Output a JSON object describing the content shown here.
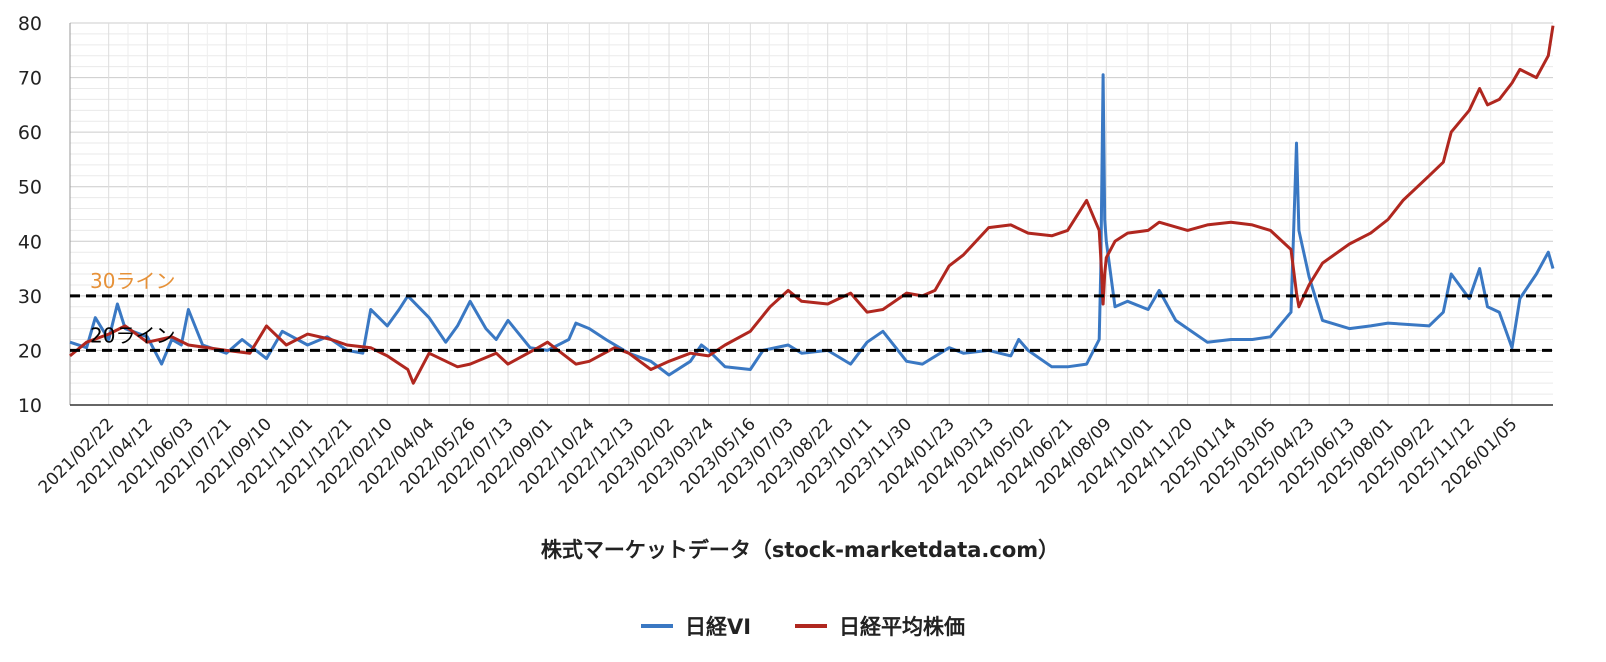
{
  "chart_data": {
    "type": "line",
    "xlabel": "株式マーケットデータ（stock-marketdata.com）",
    "ylim": [
      10,
      80
    ],
    "yticks": [
      10,
      20,
      30,
      40,
      50,
      60,
      70,
      80
    ],
    "x_ticks": [
      "2021/02/22",
      "2021/04/12",
      "2021/06/03",
      "2021/07/21",
      "2021/09/10",
      "2021/11/01",
      "2021/12/21",
      "2022/02/10",
      "2022/04/04",
      "2022/05/26",
      "2022/07/13",
      "2022/09/01",
      "2022/10/24",
      "2022/12/13",
      "2023/02/02",
      "2023/03/24",
      "2023/05/16",
      "2023/07/03",
      "2023/08/22",
      "2023/10/11",
      "2023/11/30",
      "2024/01/23",
      "2024/03/13",
      "2024/05/02",
      "2024/06/21",
      "2024/08/09",
      "2024/10/01",
      "2024/11/20",
      "2025/01/14",
      "2025/03/05",
      "2025/04/23",
      "2025/06/13",
      "2025/08/01",
      "2025/09/22",
      "2025/11/12",
      "2026/01/05"
    ],
    "x_range": [
      "2021/01/04",
      "2026/02/26"
    ],
    "grid": true,
    "legend_position": "bottom",
    "reference_lines": [
      {
        "y": 30,
        "label": "30ライン",
        "color": "#e69138"
      },
      {
        "y": 20,
        "label": "20ライン",
        "color": "#000000"
      }
    ],
    "series": [
      {
        "name": "日経VI",
        "color": "#3a78c3",
        "points": [
          [
            "2021/01/04",
            21.5
          ],
          [
            "2021/01/25",
            20.5
          ],
          [
            "2021/02/05",
            26.0
          ],
          [
            "2021/02/22",
            22.0
          ],
          [
            "2021/03/05",
            28.5
          ],
          [
            "2021/03/15",
            24.0
          ],
          [
            "2021/04/12",
            22.5
          ],
          [
            "2021/04/30",
            17.5
          ],
          [
            "2021/05/13",
            22.0
          ],
          [
            "2021/05/25",
            21.0
          ],
          [
            "2021/06/03",
            27.5
          ],
          [
            "2021/06/21",
            21.0
          ],
          [
            "2021/07/21",
            19.5
          ],
          [
            "2021/08/10",
            22.0
          ],
          [
            "2021/09/10",
            18.5
          ],
          [
            "2021/09/30",
            23.5
          ],
          [
            "2021/11/01",
            21.0
          ],
          [
            "2021/11/26",
            22.5
          ],
          [
            "2021/12/21",
            20.0
          ],
          [
            "2022/01/10",
            19.5
          ],
          [
            "2022/01/20",
            27.5
          ],
          [
            "2022/02/10",
            24.5
          ],
          [
            "2022/02/25",
            27.5
          ],
          [
            "2022/03/08",
            30.0
          ],
          [
            "2022/04/04",
            26.0
          ],
          [
            "2022/04/25",
            21.5
          ],
          [
            "2022/05/10",
            24.5
          ],
          [
            "2022/05/26",
            29.0
          ],
          [
            "2022/06/15",
            24.0
          ],
          [
            "2022/06/28",
            22.0
          ],
          [
            "2022/07/13",
            25.5
          ],
          [
            "2022/08/10",
            20.5
          ],
          [
            "2022/09/01",
            20.0
          ],
          [
            "2022/09/28",
            22.0
          ],
          [
            "2022/10/07",
            25.0
          ],
          [
            "2022/10/24",
            24.0
          ],
          [
            "2022/11/14",
            22.0
          ],
          [
            "2022/12/13",
            19.5
          ],
          [
            "2023/01/10",
            18.0
          ],
          [
            "2023/02/02",
            15.5
          ],
          [
            "2023/03/01",
            18.0
          ],
          [
            "2023/03/15",
            21.0
          ],
          [
            "2023/03/24",
            20.0
          ],
          [
            "2023/04/14",
            17.0
          ],
          [
            "2023/05/16",
            16.5
          ],
          [
            "2023/06/01",
            20.0
          ],
          [
            "2023/07/03",
            21.0
          ],
          [
            "2023/07/20",
            19.5
          ],
          [
            "2023/08/22",
            20.0
          ],
          [
            "2023/09/20",
            17.5
          ],
          [
            "2023/10/11",
            21.5
          ],
          [
            "2023/10/31",
            23.5
          ],
          [
            "2023/11/30",
            18.0
          ],
          [
            "2023/12/20",
            17.5
          ],
          [
            "2024/01/23",
            20.5
          ],
          [
            "2024/02/10",
            19.5
          ],
          [
            "2024/03/13",
            20.0
          ],
          [
            "2024/04/10",
            19.0
          ],
          [
            "2024/04/20",
            22.0
          ],
          [
            "2024/05/02",
            20.0
          ],
          [
            "2024/06/01",
            17.0
          ],
          [
            "2024/06/21",
            17.0
          ],
          [
            "2024/07/15",
            17.5
          ],
          [
            "2024/07/31",
            22.0
          ],
          [
            "2024/08/02",
            35.0
          ],
          [
            "2024/08/05",
            70.5
          ],
          [
            "2024/08/07",
            44.0
          ],
          [
            "2024/08/09",
            40.0
          ],
          [
            "2024/08/20",
            28.0
          ],
          [
            "2024/09/05",
            29.0
          ],
          [
            "2024/10/01",
            27.5
          ],
          [
            "2024/10/15",
            31.0
          ],
          [
            "2024/11/05",
            25.5
          ],
          [
            "2024/11/20",
            24.0
          ],
          [
            "2024/12/15",
            21.5
          ],
          [
            "2025/01/14",
            22.0
          ],
          [
            "2025/02/10",
            22.0
          ],
          [
            "2025/03/05",
            22.5
          ],
          [
            "2025/03/31",
            27.0
          ],
          [
            "2025/04/07",
            58.0
          ],
          [
            "2025/04/10",
            42.0
          ],
          [
            "2025/04/23",
            33.5
          ],
          [
            "2025/05/10",
            25.5
          ],
          [
            "2025/06/13",
            24.0
          ],
          [
            "2025/07/10",
            24.5
          ],
          [
            "2025/08/01",
            25.0
          ],
          [
            "2025/09/22",
            24.5
          ],
          [
            "2025/10/10",
            27.0
          ],
          [
            "2025/10/20",
            34.0
          ],
          [
            "2025/11/12",
            29.5
          ],
          [
            "2025/11/25",
            35.0
          ],
          [
            "2025/12/05",
            28.0
          ],
          [
            "2025/12/20",
            27.0
          ],
          [
            "2026/01/05",
            20.5
          ],
          [
            "2026/01/15",
            29.5
          ],
          [
            "2026/02/05",
            34.0
          ],
          [
            "2026/02/20",
            38.0
          ],
          [
            "2026/02/26",
            35.0
          ]
        ]
      },
      {
        "name": "日経平均株価",
        "color": "#b0271f",
        "points": [
          [
            "2021/01/04",
            19.0
          ],
          [
            "2021/01/25",
            21.5
          ],
          [
            "2021/02/22",
            23.0
          ],
          [
            "2021/03/15",
            24.5
          ],
          [
            "2021/04/12",
            21.5
          ],
          [
            "2021/05/13",
            22.5
          ],
          [
            "2021/06/03",
            21.0
          ],
          [
            "2021/07/21",
            20.0
          ],
          [
            "2021/08/20",
            19.5
          ],
          [
            "2021/09/10",
            24.5
          ],
          [
            "2021/10/05",
            21.0
          ],
          [
            "2021/11/01",
            23.0
          ],
          [
            "2021/12/01",
            22.0
          ],
          [
            "2021/12/21",
            21.0
          ],
          [
            "2022/01/20",
            20.5
          ],
          [
            "2022/02/10",
            19.0
          ],
          [
            "2022/03/08",
            16.5
          ],
          [
            "2022/03/15",
            14.0
          ],
          [
            "2022/04/04",
            19.5
          ],
          [
            "2022/05/10",
            17.0
          ],
          [
            "2022/05/26",
            17.5
          ],
          [
            "2022/06/28",
            19.5
          ],
          [
            "2022/07/13",
            17.5
          ],
          [
            "2022/08/20",
            20.5
          ],
          [
            "2022/09/01",
            21.5
          ],
          [
            "2022/10/07",
            17.5
          ],
          [
            "2022/10/24",
            18.0
          ],
          [
            "2022/11/25",
            20.5
          ],
          [
            "2022/12/13",
            19.5
          ],
          [
            "2023/01/10",
            16.5
          ],
          [
            "2023/02/02",
            18.0
          ],
          [
            "2023/03/01",
            19.5
          ],
          [
            "2023/03/24",
            19.0
          ],
          [
            "2023/04/14",
            21.0
          ],
          [
            "2023/05/16",
            23.5
          ],
          [
            "2023/06/10",
            28.0
          ],
          [
            "2023/07/03",
            31.0
          ],
          [
            "2023/07/20",
            29.0
          ],
          [
            "2023/08/22",
            28.5
          ],
          [
            "2023/09/20",
            30.5
          ],
          [
            "2023/10/11",
            27.0
          ],
          [
            "2023/10/31",
            27.5
          ],
          [
            "2023/11/30",
            30.5
          ],
          [
            "2023/12/20",
            30.0
          ],
          [
            "2024/01/05",
            31.0
          ],
          [
            "2024/01/23",
            35.5
          ],
          [
            "2024/02/10",
            37.5
          ],
          [
            "2024/03/13",
            42.5
          ],
          [
            "2024/04/10",
            43.0
          ],
          [
            "2024/05/02",
            41.5
          ],
          [
            "2024/06/01",
            41.0
          ],
          [
            "2024/06/21",
            42.0
          ],
          [
            "2024/07/15",
            47.5
          ],
          [
            "2024/07/31",
            42.0
          ],
          [
            "2024/08/02",
            37.0
          ],
          [
            "2024/08/05",
            28.5
          ],
          [
            "2024/08/07",
            34.0
          ],
          [
            "2024/08/09",
            37.0
          ],
          [
            "2024/08/20",
            40.0
          ],
          [
            "2024/09/05",
            41.5
          ],
          [
            "2024/10/01",
            42.0
          ],
          [
            "2024/10/15",
            43.5
          ],
          [
            "2024/11/20",
            42.0
          ],
          [
            "2024/12/15",
            43.0
          ],
          [
            "2025/01/14",
            43.5
          ],
          [
            "2025/02/10",
            43.0
          ],
          [
            "2025/03/05",
            42.0
          ],
          [
            "2025/03/31",
            38.5
          ],
          [
            "2025/04/07",
            30.5
          ],
          [
            "2025/04/10",
            28.0
          ],
          [
            "2025/04/23",
            32.0
          ],
          [
            "2025/05/10",
            36.0
          ],
          [
            "2025/06/13",
            39.5
          ],
          [
            "2025/07/10",
            41.5
          ],
          [
            "2025/08/01",
            44.0
          ],
          [
            "2025/08/20",
            47.5
          ],
          [
            "2025/09/22",
            52.0
          ],
          [
            "2025/10/10",
            54.5
          ],
          [
            "2025/10/20",
            60.0
          ],
          [
            "2025/11/12",
            64.0
          ],
          [
            "2025/11/25",
            68.0
          ],
          [
            "2025/12/05",
            65.0
          ],
          [
            "2025/12/20",
            66.0
          ],
          [
            "2026/01/05",
            69.0
          ],
          [
            "2026/01/15",
            71.5
          ],
          [
            "2026/02/05",
            70.0
          ],
          [
            "2026/02/20",
            74.0
          ],
          [
            "2026/02/26",
            79.5
          ]
        ]
      }
    ]
  }
}
